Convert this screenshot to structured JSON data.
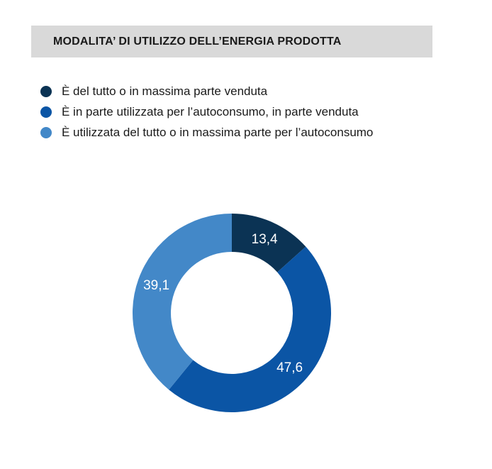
{
  "chart_data": {
    "type": "pie",
    "title": "MODALITA’ DI UTILIZZO DELL’ENERGIA PRODOTTA",
    "categories": [
      "È del tutto o in massima parte venduta",
      "È in parte utilizzata per l’autoconsumo, in parte venduta",
      "È utilizzata del tutto o in massima parte per l’autoconsumo"
    ],
    "values": [
      13.4,
      47.6,
      39.1
    ],
    "value_labels": [
      "13,4",
      "47,6",
      "39,1"
    ],
    "colors": [
      "#0b3354",
      "#0b55a5",
      "#4388c8"
    ],
    "legend_position": "top-left",
    "donut": true
  }
}
